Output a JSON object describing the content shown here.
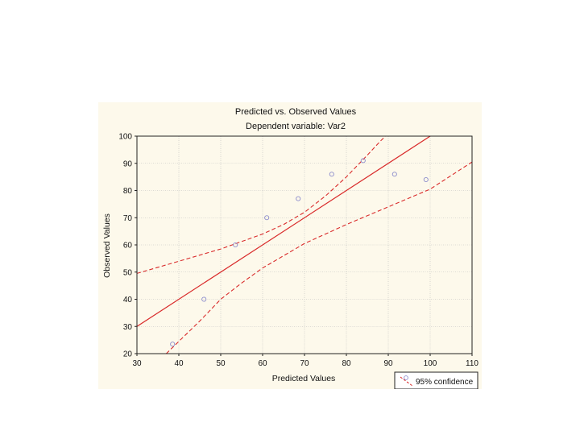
{
  "chart_data": {
    "type": "scatter",
    "title": "Predicted vs. Observed Values",
    "subtitle": "Dependent variable: Var2",
    "xlabel": "Predicted Values",
    "ylabel": "Observed Values",
    "xlim": [
      30,
      110
    ],
    "ylim": [
      20,
      100
    ],
    "xticks": [
      30,
      40,
      50,
      60,
      70,
      80,
      90,
      100,
      110
    ],
    "yticks": [
      20,
      30,
      40,
      50,
      60,
      70,
      80,
      90,
      100
    ],
    "grid": true,
    "legend": {
      "position": "bottom-right",
      "label": "95% confidence"
    },
    "points": [
      {
        "x": 38.5,
        "y": 23.5
      },
      {
        "x": 46,
        "y": 40
      },
      {
        "x": 53.5,
        "y": 60
      },
      {
        "x": 61,
        "y": 70
      },
      {
        "x": 68.5,
        "y": 77
      },
      {
        "x": 76.5,
        "y": 86
      },
      {
        "x": 84,
        "y": 91
      },
      {
        "x": 91.5,
        "y": 86
      },
      {
        "x": 99,
        "y": 84
      }
    ],
    "fit_line": {
      "intercept": 0,
      "slope": 1
    },
    "upper_confidence": [
      {
        "x": 30,
        "y": 49.5
      },
      {
        "x": 40,
        "y": 54
      },
      {
        "x": 50,
        "y": 58.5
      },
      {
        "x": 60,
        "y": 64
      },
      {
        "x": 65,
        "y": 67.5
      },
      {
        "x": 70,
        "y": 72
      },
      {
        "x": 75,
        "y": 78
      },
      {
        "x": 80,
        "y": 85
      },
      {
        "x": 85,
        "y": 93
      },
      {
        "x": 88,
        "y": 98
      },
      {
        "x": 90,
        "y": 101
      }
    ],
    "lower_confidence": [
      {
        "x": 37,
        "y": 20
      },
      {
        "x": 40,
        "y": 24.5
      },
      {
        "x": 45,
        "y": 32
      },
      {
        "x": 50,
        "y": 40
      },
      {
        "x": 55,
        "y": 46
      },
      {
        "x": 60,
        "y": 51.5
      },
      {
        "x": 65,
        "y": 56
      },
      {
        "x": 70,
        "y": 60.5
      },
      {
        "x": 80,
        "y": 67.5
      },
      {
        "x": 90,
        "y": 74
      },
      {
        "x": 100,
        "y": 80.5
      },
      {
        "x": 110,
        "y": 90.5
      }
    ],
    "colors": {
      "fit": "#d92b2b",
      "confidence": "#d92b2b",
      "points": "#8c8ccc",
      "grid": "#bdbdbd",
      "background": "#fdf9eb"
    }
  }
}
